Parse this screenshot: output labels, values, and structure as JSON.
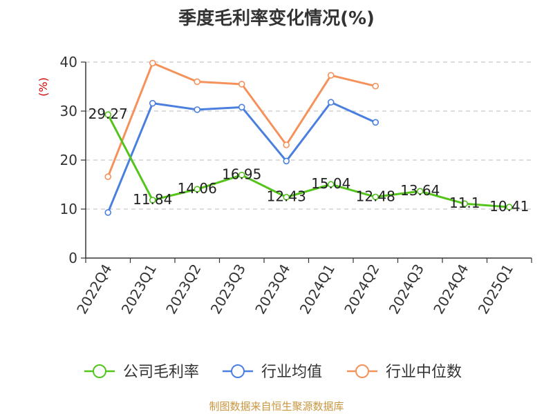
{
  "chart_data": {
    "type": "line",
    "title": "季度毛利率变化情况(%)",
    "ylabel": "(%)",
    "xlabel": "",
    "ylim": [
      0,
      40
    ],
    "yticks": [
      0,
      10,
      20,
      30,
      40
    ],
    "categories": [
      "2022Q4",
      "2023Q1",
      "2023Q2",
      "2023Q3",
      "2023Q4",
      "2024Q1",
      "2024Q2",
      "2024Q3",
      "2024Q4",
      "2025Q1"
    ],
    "grid": "horizontal dashed",
    "legend_position": "bottom",
    "series": [
      {
        "name": "公司毛利率",
        "color": "#52c41a",
        "labeled": true,
        "values": [
          29.27,
          11.84,
          14.06,
          16.95,
          12.43,
          15.04,
          12.48,
          13.64,
          11.1,
          10.41
        ],
        "labels": [
          "29.27",
          "11.84",
          "14.06",
          "16.95",
          "12.43",
          "15.04",
          "12.48",
          "13.64",
          "11.1",
          "10.41"
        ]
      },
      {
        "name": "行业均值",
        "color": "#4a7fe0",
        "labeled": false,
        "values": [
          9.3,
          31.6,
          30.3,
          30.8,
          19.8,
          31.8,
          27.7,
          null,
          null,
          null
        ]
      },
      {
        "name": "行业中位数",
        "color": "#f5915a",
        "labeled": false,
        "values": [
          16.6,
          39.8,
          36.0,
          35.5,
          23.1,
          37.3,
          35.1,
          null,
          null,
          null
        ]
      }
    ]
  },
  "source": "制图数据来自恒生聚源数据库"
}
